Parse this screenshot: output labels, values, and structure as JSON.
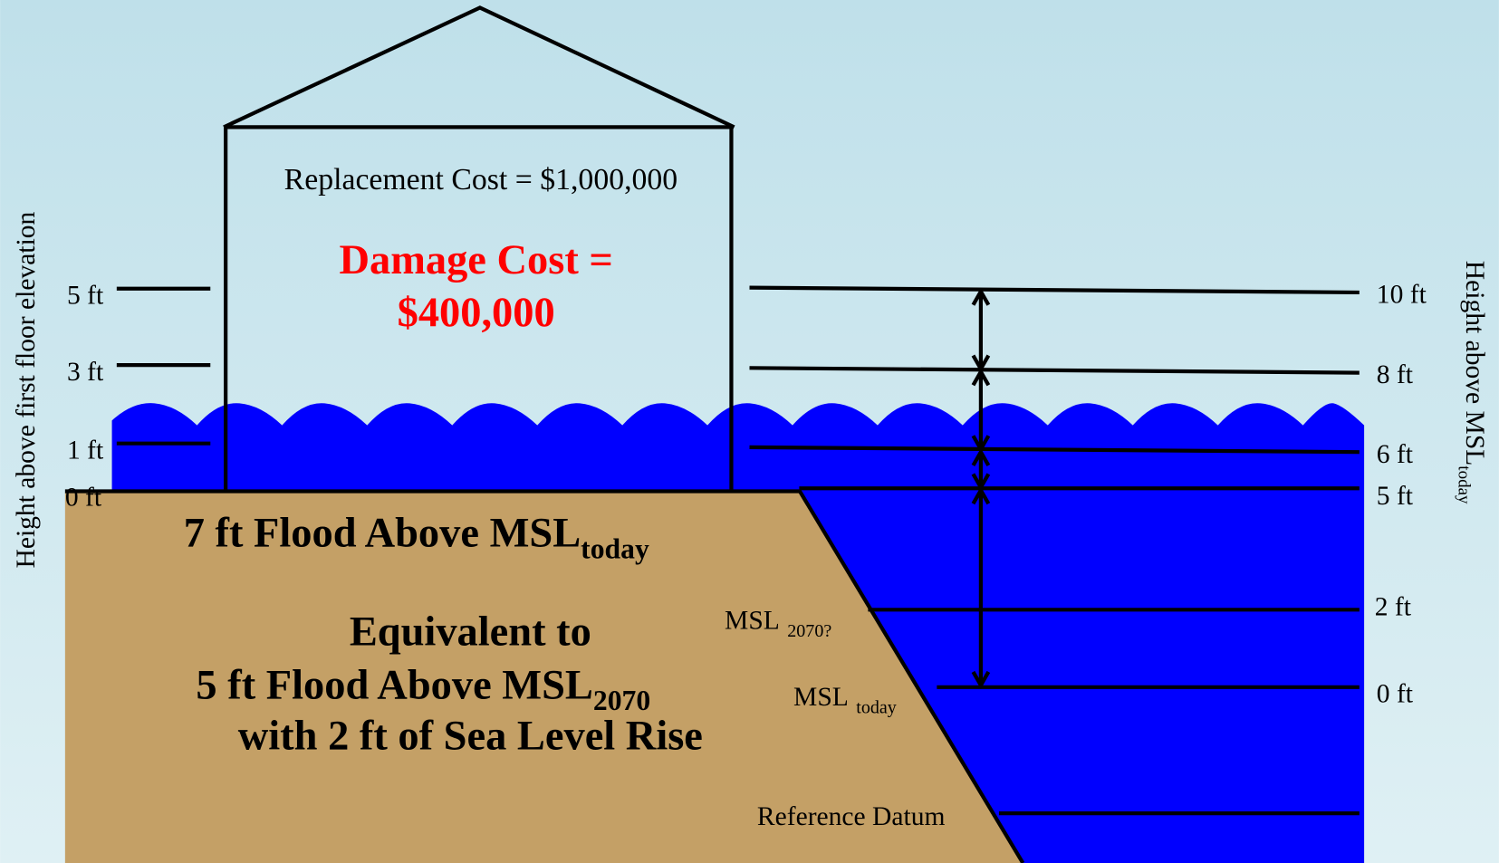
{
  "house": {
    "replacement_cost": "Replacement Cost = $1,000,000",
    "damage_cost": [
      "Damage Cost =",
      "$400,000"
    ]
  },
  "left_axis": {
    "title": "Height above first floor elevation",
    "ticks": [
      "5 ft",
      "3 ft",
      "1 ft",
      "0 ft"
    ]
  },
  "right_axis": {
    "title": "Height above MSL",
    "title_sub": "today",
    "ticks": [
      "10 ft",
      "8 ft",
      "6 ft",
      "5 ft",
      "2 ft",
      "0 ft"
    ]
  },
  "flood_text": {
    "line1": "7 ft Flood Above MSL",
    "line1_sub": "today",
    "line2": "Equivalent to",
    "line3": "5 ft Flood Above MSL",
    "line3_sub": "2070",
    "line4": "with 2 ft of Sea Level Rise"
  },
  "levels": {
    "msl_2070": "MSL",
    "msl_2070_sub": "2070?",
    "msl_today": "MSL",
    "msl_today_sub": "today",
    "reference_datum": "Reference Datum"
  }
}
